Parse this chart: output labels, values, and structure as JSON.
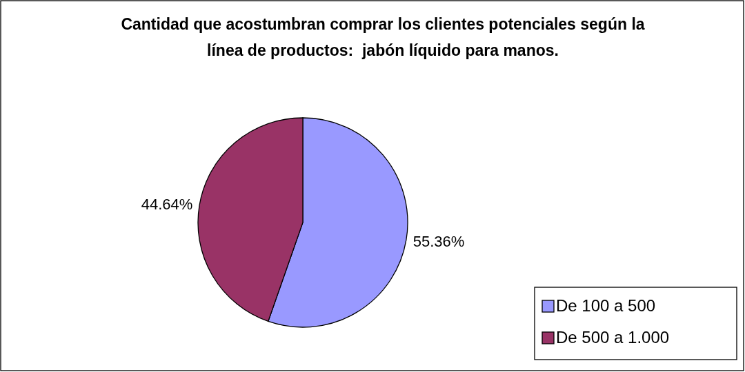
{
  "chart_data": {
    "type": "pie",
    "title": "Cantidad que acostumbran comprar los clientes potenciales según la línea de productos:  jabón líquido para manos.",
    "categories": [
      "De 100 a 500",
      "De 500 a 1.000"
    ],
    "values": [
      55.36,
      44.64
    ],
    "colors": [
      "#9999ff",
      "#993366"
    ],
    "value_labels": [
      "55.36%",
      "44.64%"
    ],
    "legend": "bottom right"
  }
}
